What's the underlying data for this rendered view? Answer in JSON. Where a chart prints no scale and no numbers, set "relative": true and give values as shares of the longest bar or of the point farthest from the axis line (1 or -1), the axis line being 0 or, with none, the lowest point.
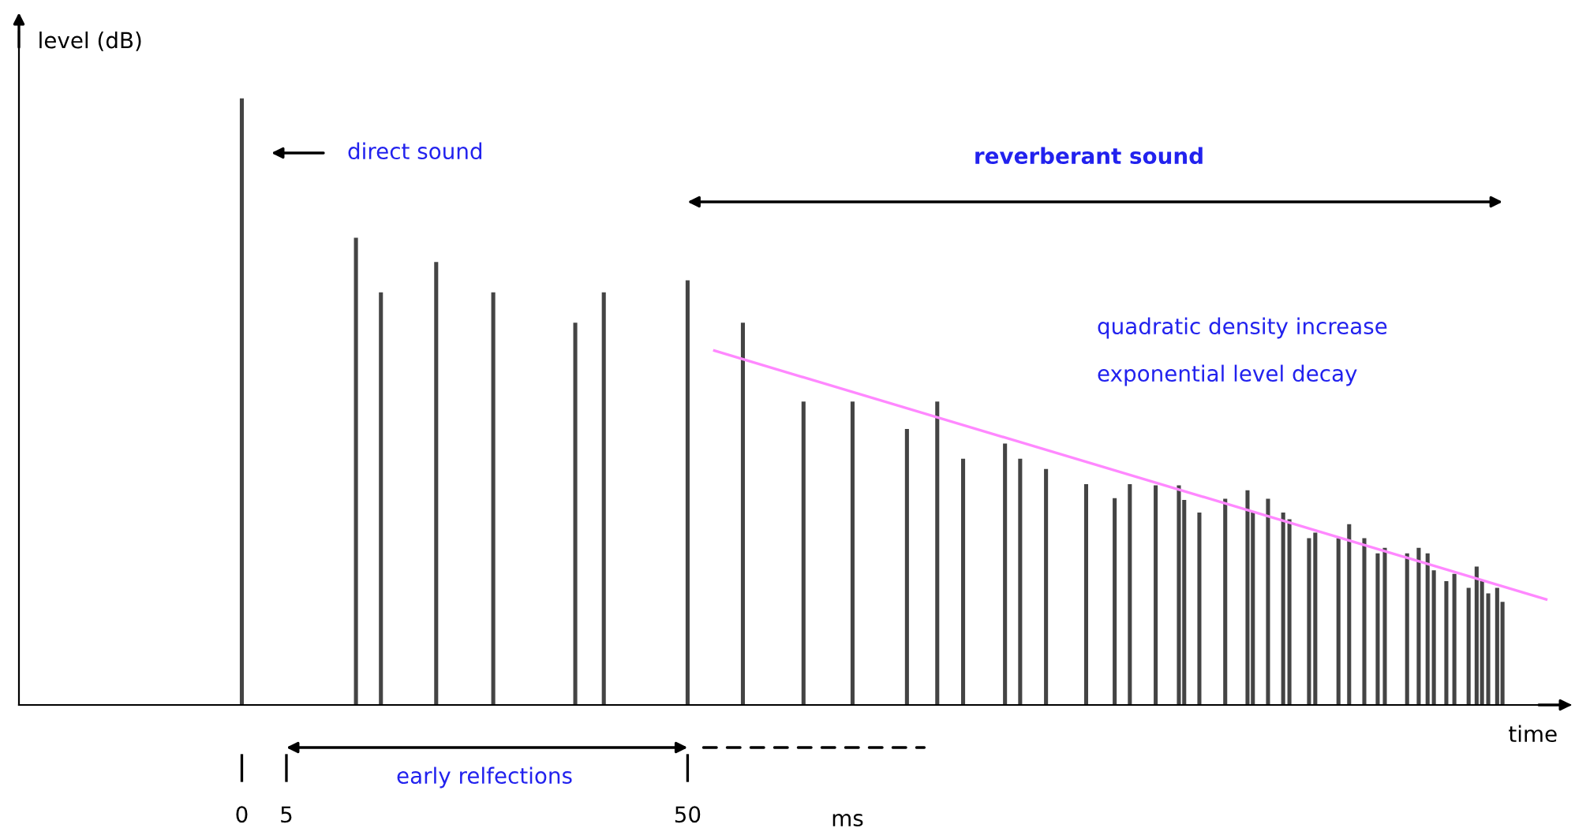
{
  "chart_data": {
    "type": "bar",
    "relative": true,
    "ylabel": "level (dB)",
    "xlabel": "time",
    "xlim": [
      -25,
      149
    ],
    "xticks": [
      0,
      5,
      50
    ],
    "grid": false,
    "legend": false,
    "x": [
      0,
      12.8,
      15.6,
      21.8,
      28.2,
      37.4,
      40.6,
      50,
      56.2,
      63.0,
      68.5,
      74.6,
      78.0,
      80.9,
      85.6,
      87.3,
      90.2,
      94.7,
      97.9,
      99.6,
      102.5,
      105.1,
      105.7,
      107.4,
      110.3,
      112.8,
      113.4,
      115.1,
      116.8,
      117.5,
      119.7,
      120.4,
      123.0,
      124.2,
      125.9,
      127.4,
      128.2,
      130.7,
      132.0,
      133.0,
      133.7,
      135.1,
      136.0,
      137.6,
      138.5,
      139.1,
      139.8,
      140.8,
      141.4
    ],
    "series": [
      {
        "color": "#444444",
        "values": [
          1.0,
          0.77,
          0.68,
          0.73,
          0.68,
          0.63,
          0.68,
          0.7,
          0.63,
          0.5,
          0.5,
          0.455,
          0.5,
          0.406,
          0.431,
          0.406,
          0.389,
          0.364,
          0.341,
          0.364,
          0.362,
          0.362,
          0.338,
          0.317,
          0.34,
          0.354,
          0.317,
          0.34,
          0.317,
          0.306,
          0.275,
          0.284,
          0.275,
          0.298,
          0.275,
          0.25,
          0.259,
          0.25,
          0.259,
          0.25,
          0.222,
          0.204,
          0.216,
          0.193,
          0.228,
          0.204,
          0.184,
          0.193,
          0.17
        ]
      },
      {
        "type": "line",
        "color": "#ff88ff",
        "x": [
          53.0,
          146.3
        ],
        "values": [
          0.584,
          0.174
        ]
      }
    ],
    "annotations": [
      "direct sound",
      "reverberant sound",
      "quadratic density increase",
      "exponential level decay",
      "early relfections",
      "ms"
    ]
  }
}
